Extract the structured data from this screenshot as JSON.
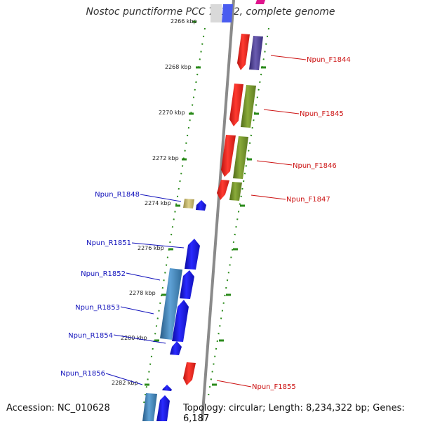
{
  "title": "Nostoc punctiforme PCC 73102, complete genome",
  "footer": {
    "accession": "Accession: NC_010628",
    "topology": "Topology: circular; Length: 8,234,322 bp; Genes: 6,187"
  },
  "ruler_ticks": [
    "2266 kbp",
    "2268 kbp",
    "2270 kbp",
    "2272 kbp",
    "2274 kbp",
    "2276 kbp",
    "2278 kbp",
    "2280 kbp",
    "2282 kbp"
  ],
  "forward_genes": [
    {
      "label": "Npun_F1844",
      "color": "#e8221c"
    },
    {
      "label": "Npun_F1845",
      "color": "#e8221c"
    },
    {
      "label": "Npun_F1846",
      "color": "#e8221c"
    },
    {
      "label": "Npun_F1847",
      "color": "#e8221c"
    },
    {
      "label": "Npun_F1855",
      "color": "#e8221c"
    }
  ],
  "reverse_genes": [
    {
      "label": "Npun_R1848",
      "color": "#1a1ad8"
    },
    {
      "label": "Npun_R1851",
      "color": "#1a1ad8"
    },
    {
      "label": "Npun_R1852",
      "color": "#1a1ad8"
    },
    {
      "label": "Npun_R1853",
      "color": "#1a1ad8"
    },
    {
      "label": "Npun_R1854",
      "color": "#1a1ad8"
    },
    {
      "label": "Npun_R1856",
      "color": "#1a1ad8"
    }
  ],
  "colors": {
    "forward_label": "#cc1111",
    "reverse_label": "#1111bb",
    "ruler": "#2a8a1a",
    "backbone": "#888888",
    "feature_olive": "#6f8f2a",
    "feature_purple": "#4b3d8f",
    "feature_steelblue": "#3d7fb0",
    "feature_khaki": "#c8b86a"
  }
}
